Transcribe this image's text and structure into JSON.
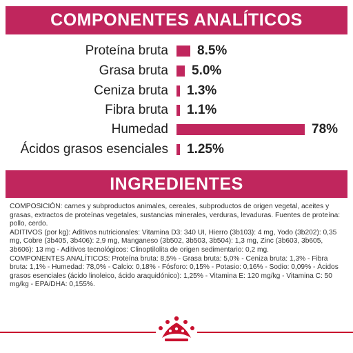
{
  "header": {
    "title": "COMPONENTES ANALÍTICOS"
  },
  "analytics": [
    {
      "label": "Proteína bruta",
      "value_text": "8.5%",
      "value": 8.5
    },
    {
      "label": "Grasa bruta",
      "value_text": "5.0%",
      "value": 5.0
    },
    {
      "label": "Ceniza bruta",
      "value_text": "1.3%",
      "value": 1.3
    },
    {
      "label": "Fibra bruta",
      "value_text": "1.1%",
      "value": 1.1
    },
    {
      "label": "Humedad",
      "value_text": "78%",
      "value": 78
    },
    {
      "label": "Ácidos grasos esenciales",
      "value_text": "1.25%",
      "value": 1.25
    }
  ],
  "bar_color": "#c0265d",
  "ingredients": {
    "title": "INGREDIENTES",
    "paragraphs": [
      "COMPOSICIÓN: carnes y subproductos animales, cereales, subproductos de origen vegetal, aceites y grasas, extractos de proteínas vegetales, sustancias minerales, verduras, levaduras. Fuentes de proteína: pollo, cerdo.",
      "ADITIVOS (por kg): Aditivos nutricionales: Vitamina D3: 340 UI, Hierro (3b103): 4 mg, Yodo (3b202): 0,35 mg, Cobre (3b405, 3b406): 2,9 mg, Manganeso (3b502, 3b503, 3b504): 1,3 mg, Zinc (3b603, 3b605, 3b606): 13 mg - Aditivos tecnológicos: Clinoptilolita de origen sedimentario: 0,2 mg.",
      "COMPONENTES ANALÍTICOS: Proteína bruta: 8,5% - Grasa bruta: 5,0% - Ceniza bruta: 1,3% - Fibra bruta: 1,1% - Humedad: 78,0% - Calcio: 0,18% - Fósforo: 0,15% - Potasio: 0,16% - Sodio: 0,09% - Ácidos grasos esenciales (ácido linoleico, ácido araquidónico): 1,25% - Vitamina E: 120 mg/kg - Vitamina C: 50 mg/kg - EPA/DHA: 0,155%."
    ]
  },
  "brand": {
    "logo": "royal-canin-crown-icon",
    "color": "#c8102e"
  }
}
